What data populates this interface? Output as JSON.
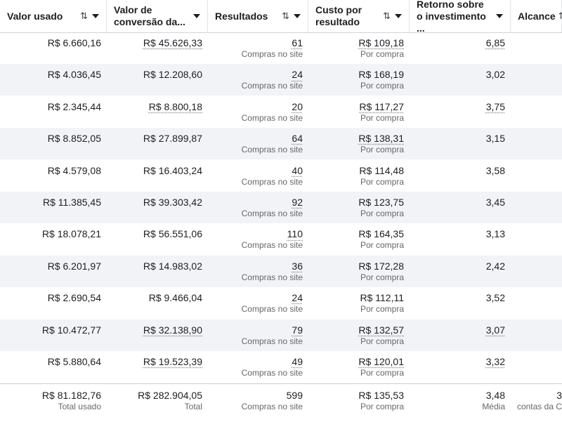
{
  "headers": [
    {
      "label": "Valor usado",
      "sort": "⇅",
      "caret": true
    },
    {
      "label": "Valor de conversão da...",
      "sort": "",
      "caret": true
    },
    {
      "label": "Resultados",
      "sort": "⇅",
      "caret": true
    },
    {
      "label": "Custo por resultado",
      "sort": "⇅",
      "caret": true
    },
    {
      "label": "Retorno sobre o investimento ...",
      "sort": "",
      "caret": true
    },
    {
      "label": "Alcance",
      "sort": "⇅",
      "caret": false
    }
  ],
  "rows": [
    {
      "spent": "R$ 6.660,16",
      "conv": "R$ 45.626,33",
      "results": "61",
      "results_sub": "Compras no site",
      "cpr": "R$ 109,18",
      "cpr_sub": "Por compra",
      "roas": "6,85"
    },
    {
      "spent": "R$ 4.036,45",
      "conv": "R$ 12.208,60",
      "results": "24",
      "results_sub": "Compras no site",
      "cpr": "R$ 168,19",
      "cpr_sub": "Por compra",
      "roas": "3,02"
    },
    {
      "spent": "R$ 2.345,44",
      "conv": "R$ 8.800,18",
      "results": "20",
      "results_sub": "Compras no site",
      "cpr": "R$ 117,27",
      "cpr_sub": "Por compra",
      "roas": "3,75"
    },
    {
      "spent": "R$ 8.852,05",
      "conv": "R$ 27.899,87",
      "results": "64",
      "results_sub": "Compras no site",
      "cpr": "R$ 138,31",
      "cpr_sub": "Por compra",
      "roas": "3,15"
    },
    {
      "spent": "R$ 4.579,08",
      "conv": "R$ 16.403,24",
      "results": "40",
      "results_sub": "Compras no site",
      "cpr": "R$ 114,48",
      "cpr_sub": "Por compra",
      "roas": "3,58"
    },
    {
      "spent": "R$ 11.385,45",
      "conv": "R$ 39.303,42",
      "results": "92",
      "results_sub": "Compras no site",
      "cpr": "R$ 123,75",
      "cpr_sub": "Por compra",
      "roas": "3,45"
    },
    {
      "spent": "R$ 18.078,21",
      "conv": "R$ 56.551,06",
      "results": "110",
      "results_sub": "Compras no site",
      "cpr": "R$ 164,35",
      "cpr_sub": "Por compra",
      "roas": "3,13"
    },
    {
      "spent": "R$ 6.201,97",
      "conv": "R$ 14.983,02",
      "results": "36",
      "results_sub": "Compras no site",
      "cpr": "R$ 172,28",
      "cpr_sub": "Por compra",
      "roas": "2,42"
    },
    {
      "spent": "R$ 2.690,54",
      "conv": "R$ 9.466,04",
      "results": "24",
      "results_sub": "Compras no site",
      "cpr": "R$ 112,11",
      "cpr_sub": "Por compra",
      "roas": "3,52"
    },
    {
      "spent": "R$ 10.472,77",
      "conv": "R$ 32.138,90",
      "results": "79",
      "results_sub": "Compras no site",
      "cpr": "R$ 132,57",
      "cpr_sub": "Por compra",
      "roas": "3,07"
    },
    {
      "spent": "R$ 5.880,64",
      "conv": "R$ 19.523,39",
      "results": "49",
      "results_sub": "Compras no site",
      "cpr": "R$ 120,01",
      "cpr_sub": "Por compra",
      "roas": "3,32"
    }
  ],
  "totals": {
    "spent": "R$ 81.182,76",
    "spent_sub": "Total usado",
    "conv": "R$ 282.904,05",
    "conv_sub": "Total",
    "results": "599",
    "results_sub": "Compras no site",
    "cpr": "R$ 135,53",
    "cpr_sub": "Por compra",
    "roas": "3,48",
    "roas_sub": "Média",
    "reach": "3",
    "reach_sub": "contas da C"
  }
}
